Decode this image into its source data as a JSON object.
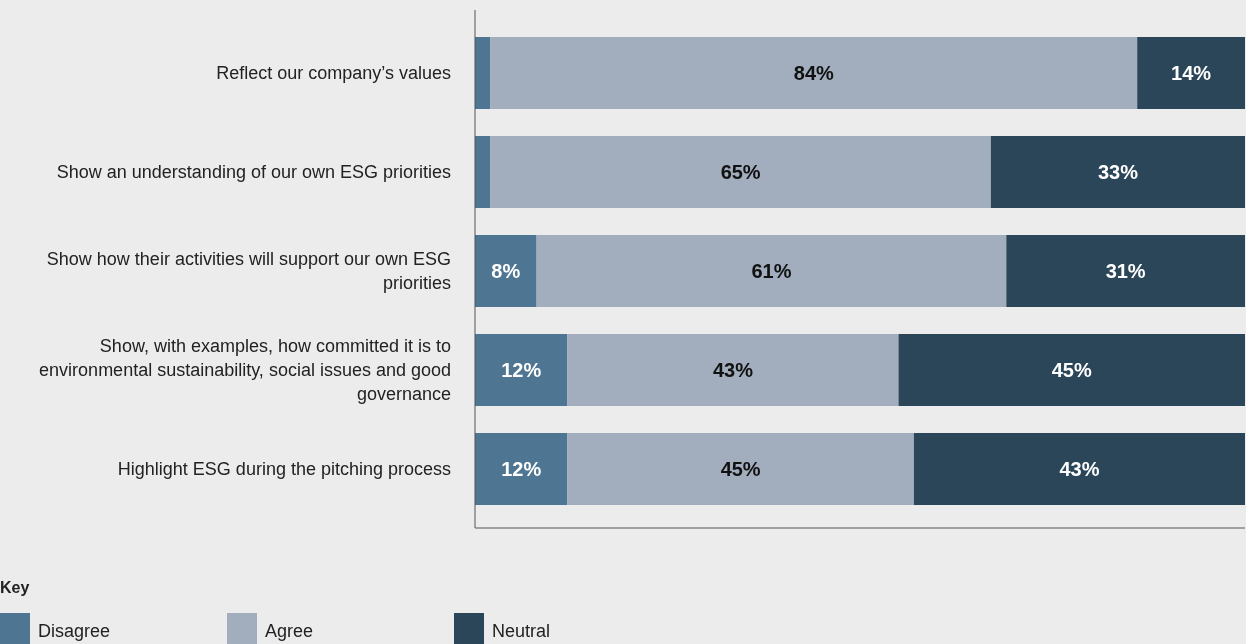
{
  "chart_data": {
    "type": "bar",
    "orientation": "horizontal",
    "stacked": true,
    "categories": [
      "Reflect our company’s values",
      "Show an understanding of our own ESG priorities",
      "Show how their activities will support our own ESG priorities",
      "Show, with examples, how committed it is to environmental sustainability, social issues and good governance",
      "Highlight ESG during the pitching process"
    ],
    "series": [
      {
        "name": "Disagree",
        "color": "#4e7592",
        "values": [
          2,
          2,
          8,
          12,
          12
        ],
        "value_labels": [
          null,
          null,
          "8%",
          "12%",
          "12%"
        ]
      },
      {
        "name": "Agree",
        "color": "#a2adbd",
        "values": [
          84,
          65,
          61,
          43,
          45
        ],
        "value_labels": [
          "84%",
          "65%",
          "61%",
          "43%",
          "45%"
        ]
      },
      {
        "name": "Neutral",
        "color": "#2b4659",
        "values": [
          14,
          33,
          31,
          45,
          43
        ],
        "value_labels": [
          "14%",
          "33%",
          "31%",
          "45%",
          "43%"
        ]
      }
    ],
    "legend": "bottom left",
    "legend_title": "Key"
  }
}
